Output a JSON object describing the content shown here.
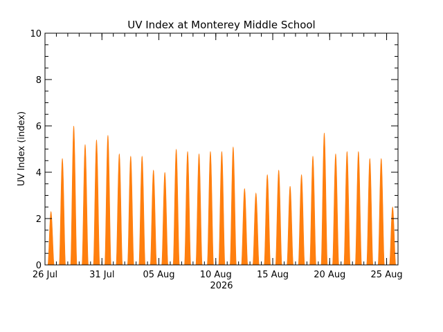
{
  "chart_data": {
    "type": "area",
    "title": "UV Index at Monterey Middle School",
    "ylabel": "UV Index (index)",
    "xlabel": "2026",
    "ylim": [
      0,
      10
    ],
    "yticks": [
      "0",
      "2",
      "4",
      "6",
      "8",
      "10"
    ],
    "xlim": [
      "2026-07-26",
      "2026-08-26"
    ],
    "xticks": [
      {
        "date": "2026-07-26",
        "label": "26 Jul"
      },
      {
        "date": "2026-07-31",
        "label": "31 Jul"
      },
      {
        "date": "2026-08-05",
        "label": "05 Aug"
      },
      {
        "date": "2026-08-10",
        "label": "10 Aug"
      },
      {
        "date": "2026-08-15",
        "label": "15 Aug"
      },
      {
        "date": "2026-08-20",
        "label": "20 Aug"
      },
      {
        "date": "2026-08-25",
        "label": "25 Aug"
      }
    ],
    "grid": false,
    "series": [
      {
        "color": "#ff7f0e",
        "daily_peaks": [
          {
            "date": "2026-07-26",
            "peak": 2.3
          },
          {
            "date": "2026-07-27",
            "peak": 4.6
          },
          {
            "date": "2026-07-28",
            "peak": 6.0
          },
          {
            "date": "2026-07-29",
            "peak": 5.2
          },
          {
            "date": "2026-07-30",
            "peak": 5.4
          },
          {
            "date": "2026-07-31",
            "peak": 5.6
          },
          {
            "date": "2026-08-01",
            "peak": 4.8
          },
          {
            "date": "2026-08-02",
            "peak": 4.7
          },
          {
            "date": "2026-08-03",
            "peak": 4.7
          },
          {
            "date": "2026-08-04",
            "peak": 4.1
          },
          {
            "date": "2026-08-05",
            "peak": 4.0
          },
          {
            "date": "2026-08-06",
            "peak": 5.0
          },
          {
            "date": "2026-08-07",
            "peak": 4.9
          },
          {
            "date": "2026-08-08",
            "peak": 4.8
          },
          {
            "date": "2026-08-09",
            "peak": 4.9
          },
          {
            "date": "2026-08-10",
            "peak": 4.9
          },
          {
            "date": "2026-08-11",
            "peak": 5.1
          },
          {
            "date": "2026-08-12",
            "peak": 3.3
          },
          {
            "date": "2026-08-13",
            "peak": 3.1
          },
          {
            "date": "2026-08-14",
            "peak": 3.9
          },
          {
            "date": "2026-08-15",
            "peak": 4.1
          },
          {
            "date": "2026-08-16",
            "peak": 3.4
          },
          {
            "date": "2026-08-17",
            "peak": 3.9
          },
          {
            "date": "2026-08-18",
            "peak": 4.7
          },
          {
            "date": "2026-08-19",
            "peak": 5.7
          },
          {
            "date": "2026-08-20",
            "peak": 4.8
          },
          {
            "date": "2026-08-21",
            "peak": 4.9
          },
          {
            "date": "2026-08-22",
            "peak": 4.9
          },
          {
            "date": "2026-08-23",
            "peak": 4.6
          },
          {
            "date": "2026-08-24",
            "peak": 4.6
          },
          {
            "date": "2026-08-25",
            "peak": 2.5
          }
        ]
      }
    ]
  }
}
